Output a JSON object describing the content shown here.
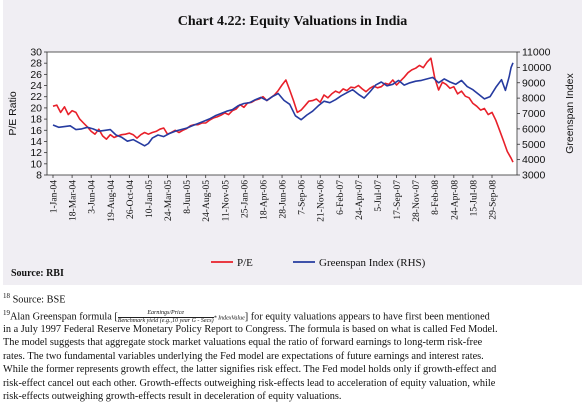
{
  "chart_data": {
    "type": "line",
    "title": "Chart 4.22: Equity Valuations in India",
    "ylabel": "P/E Ratio",
    "y2label": "Greenspan Index",
    "ylim": [
      8,
      30
    ],
    "y2lim": [
      3000,
      11000
    ],
    "yticks": [
      8,
      10,
      12,
      14,
      16,
      18,
      20,
      22,
      24,
      26,
      28,
      30
    ],
    "y2ticks": [
      3000,
      4000,
      5000,
      6000,
      7000,
      8000,
      9000,
      10000,
      11000
    ],
    "x_tick_labels": [
      "1-Jan-04",
      "18-Mar-04",
      "3-Jun-04",
      "19-Aug-04",
      "26-Oct-04",
      "10-Jan-05",
      "24-Mar-05",
      "8-Jun-05",
      "24-Aug-05",
      "11-Nov-05",
      "25-Jan-06",
      "18-Apr-06",
      "28-Jun-06",
      "7-Sep-06",
      "21-Nov-06",
      "6-Feb-07",
      "24-Apr-07",
      "5-Jul-07",
      "17-Sep-07",
      "28-Nov-07",
      "8-Feb-08",
      "24-Apr-08",
      "15-Jul-08",
      "29-Sep-08"
    ],
    "legend_position": "bottom",
    "series": [
      {
        "name": "P/E",
        "color": "#e8202a",
        "axis": "left",
        "points": [
          [
            0,
            20.3
          ],
          [
            0.2,
            20.5
          ],
          [
            0.4,
            19.2
          ],
          [
            0.6,
            20.2
          ],
          [
            0.8,
            18.8
          ],
          [
            1.0,
            19.5
          ],
          [
            1.2,
            19.2
          ],
          [
            1.4,
            18.0
          ],
          [
            1.6,
            17.3
          ],
          [
            1.8,
            16.6
          ],
          [
            2.0,
            15.8
          ],
          [
            2.2,
            15.3
          ],
          [
            2.4,
            16.2
          ],
          [
            2.6,
            15.0
          ],
          [
            2.8,
            14.4
          ],
          [
            3.0,
            15.2
          ],
          [
            3.2,
            14.7
          ],
          [
            3.4,
            15.0
          ],
          [
            3.6,
            15.2
          ],
          [
            3.8,
            15.3
          ],
          [
            4.0,
            15.5
          ],
          [
            4.2,
            15.2
          ],
          [
            4.4,
            14.6
          ],
          [
            4.6,
            15.2
          ],
          [
            4.8,
            15.6
          ],
          [
            5.0,
            15.3
          ],
          [
            5.2,
            15.6
          ],
          [
            5.4,
            15.8
          ],
          [
            5.6,
            16.2
          ],
          [
            5.8,
            16.4
          ],
          [
            6.0,
            15.3
          ],
          [
            6.2,
            15.6
          ],
          [
            6.4,
            16.0
          ],
          [
            6.6,
            15.6
          ],
          [
            6.8,
            16.0
          ],
          [
            7.0,
            16.3
          ],
          [
            7.2,
            16.8
          ],
          [
            7.4,
            17.0
          ],
          [
            7.6,
            17.0
          ],
          [
            7.8,
            17.3
          ],
          [
            8.0,
            17.3
          ],
          [
            8.2,
            17.8
          ],
          [
            8.4,
            18.2
          ],
          [
            8.6,
            18.4
          ],
          [
            8.8,
            18.7
          ],
          [
            9.0,
            19.1
          ],
          [
            9.2,
            18.8
          ],
          [
            9.4,
            19.5
          ],
          [
            9.6,
            19.8
          ],
          [
            9.8,
            20.6
          ],
          [
            10.0,
            20.1
          ],
          [
            10.2,
            20.9
          ],
          [
            10.4,
            21.0
          ],
          [
            10.6,
            21.4
          ],
          [
            10.8,
            21.6
          ],
          [
            11.0,
            22.0
          ],
          [
            11.2,
            21.3
          ],
          [
            11.4,
            21.8
          ],
          [
            11.6,
            22.3
          ],
          [
            11.8,
            23.1
          ],
          [
            12.0,
            24.1
          ],
          [
            12.2,
            25.0
          ],
          [
            12.4,
            23.2
          ],
          [
            12.6,
            21.3
          ],
          [
            12.8,
            19.2
          ],
          [
            13.0,
            19.6
          ],
          [
            13.2,
            20.4
          ],
          [
            13.4,
            21.2
          ],
          [
            13.6,
            21.3
          ],
          [
            13.8,
            21.6
          ],
          [
            14.0,
            21.0
          ],
          [
            14.2,
            22.3
          ],
          [
            14.4,
            21.8
          ],
          [
            14.6,
            22.5
          ],
          [
            14.8,
            23.0
          ],
          [
            15.0,
            22.7
          ],
          [
            15.2,
            23.4
          ],
          [
            15.4,
            23.1
          ],
          [
            15.6,
            23.7
          ],
          [
            15.8,
            23.6
          ],
          [
            16.0,
            24.0
          ],
          [
            16.2,
            23.4
          ],
          [
            16.4,
            22.9
          ],
          [
            16.6,
            23.5
          ],
          [
            16.8,
            23.9
          ],
          [
            17.0,
            23.6
          ],
          [
            17.2,
            23.8
          ],
          [
            17.4,
            24.4
          ],
          [
            17.6,
            24.2
          ],
          [
            17.8,
            25.0
          ],
          [
            18.0,
            24.1
          ],
          [
            18.2,
            24.8
          ],
          [
            18.4,
            25.5
          ],
          [
            18.6,
            26.3
          ],
          [
            18.8,
            26.8
          ],
          [
            19.0,
            27.1
          ],
          [
            19.2,
            27.6
          ],
          [
            19.4,
            27.2
          ],
          [
            19.6,
            28.2
          ],
          [
            19.8,
            28.9
          ],
          [
            20.0,
            25.4
          ],
          [
            20.2,
            23.2
          ],
          [
            20.4,
            24.6
          ],
          [
            20.6,
            24.2
          ],
          [
            20.8,
            23.5
          ],
          [
            21.0,
            23.8
          ],
          [
            21.2,
            22.5
          ],
          [
            21.4,
            23.0
          ],
          [
            21.6,
            22.1
          ],
          [
            21.8,
            21.8
          ],
          [
            22.0,
            20.8
          ],
          [
            22.2,
            20.3
          ],
          [
            22.4,
            19.6
          ],
          [
            22.6,
            19.9
          ],
          [
            22.8,
            18.8
          ],
          [
            23.0,
            19.2
          ],
          [
            23.2,
            17.8
          ],
          [
            23.4,
            16.0
          ],
          [
            23.6,
            14.1
          ],
          [
            23.8,
            12.2
          ],
          [
            24.0,
            11.0
          ],
          [
            24.1,
            10.3
          ]
        ]
      },
      {
        "name": "Greenspan Index (RHS)",
        "color": "#263ba0",
        "axis": "right",
        "points": [
          [
            0,
            6250
          ],
          [
            0.3,
            6100
          ],
          [
            0.6,
            6150
          ],
          [
            0.9,
            6200
          ],
          [
            1.2,
            5950
          ],
          [
            1.5,
            6000
          ],
          [
            1.8,
            6100
          ],
          [
            2.1,
            6000
          ],
          [
            2.4,
            5850
          ],
          [
            2.7,
            5900
          ],
          [
            3.0,
            5950
          ],
          [
            3.3,
            5600
          ],
          [
            3.6,
            5450
          ],
          [
            3.9,
            5200
          ],
          [
            4.2,
            5300
          ],
          [
            4.5,
            5100
          ],
          [
            4.8,
            4900
          ],
          [
            5.0,
            5050
          ],
          [
            5.2,
            5400
          ],
          [
            5.5,
            5600
          ],
          [
            5.8,
            5500
          ],
          [
            6.1,
            5700
          ],
          [
            6.4,
            5850
          ],
          [
            6.7,
            5950
          ],
          [
            7.0,
            6050
          ],
          [
            7.3,
            6200
          ],
          [
            7.6,
            6350
          ],
          [
            7.9,
            6500
          ],
          [
            8.2,
            6650
          ],
          [
            8.5,
            6850
          ],
          [
            8.8,
            7000
          ],
          [
            9.1,
            7150
          ],
          [
            9.4,
            7250
          ],
          [
            9.7,
            7500
          ],
          [
            10.0,
            7650
          ],
          [
            10.3,
            7700
          ],
          [
            10.6,
            7900
          ],
          [
            10.9,
            8050
          ],
          [
            11.2,
            7850
          ],
          [
            11.5,
            8100
          ],
          [
            11.8,
            8300
          ],
          [
            12.1,
            7850
          ],
          [
            12.4,
            7600
          ],
          [
            12.7,
            6850
          ],
          [
            13.0,
            6600
          ],
          [
            13.3,
            6900
          ],
          [
            13.6,
            7150
          ],
          [
            13.9,
            7500
          ],
          [
            14.2,
            7800
          ],
          [
            14.5,
            7700
          ],
          [
            14.8,
            7900
          ],
          [
            15.1,
            8150
          ],
          [
            15.4,
            8350
          ],
          [
            15.7,
            8550
          ],
          [
            16.0,
            8250
          ],
          [
            16.3,
            8000
          ],
          [
            16.6,
            8400
          ],
          [
            16.9,
            8850
          ],
          [
            17.2,
            9050
          ],
          [
            17.5,
            8800
          ],
          [
            17.8,
            8900
          ],
          [
            18.1,
            9150
          ],
          [
            18.4,
            8850
          ],
          [
            18.7,
            9000
          ],
          [
            19.0,
            9100
          ],
          [
            19.3,
            9150
          ],
          [
            19.6,
            9250
          ],
          [
            19.9,
            9350
          ],
          [
            20.2,
            9000
          ],
          [
            20.5,
            9250
          ],
          [
            20.8,
            9050
          ],
          [
            21.1,
            8900
          ],
          [
            21.4,
            9150
          ],
          [
            21.7,
            8750
          ],
          [
            22.0,
            8550
          ],
          [
            22.3,
            8250
          ],
          [
            22.6,
            7950
          ],
          [
            22.9,
            8100
          ],
          [
            23.2,
            8700
          ],
          [
            23.5,
            9200
          ],
          [
            23.7,
            8500
          ],
          [
            23.9,
            9400
          ],
          [
            24.0,
            10000
          ],
          [
            24.1,
            10300
          ]
        ]
      }
    ]
  },
  "source_rbi": "Source: RBI",
  "footnotes": {
    "fn1_num": "18",
    "fn1_text": " Source: BSE",
    "fn2_num": "19",
    "fn2_pre": "Alan Greenspan formula [",
    "fn2_frac_num": "Earnings/Price",
    "fn2_frac_den": "Benchmark yield (e.g.,10 year G - Secs)",
    "fn2_frac_post": "* IndexValue",
    "fn2_post": "] for equity valuations appears to have first been mentioned",
    "lines": [
      "in a July 1997 Federal Reserve Monetary Policy Report to Congress. The formula is based on what is called Fed Model.",
      "The model suggests that aggregate stock market valuations equal the ratio of forward earnings to long-term risk-free",
      "rates. The two fundamental variables underlying the Fed model are expectations of future earnings and interest rates.",
      "While the former represents growth effect, the latter signifies risk effect. The Fed model holds only if growth-effect and",
      "risk-effect cancel out each other. Growth-effects outweighing risk-effects lead to acceleration of equity valuation, while",
      "risk-effects outweighing growth-effects result in deceleration of equity valuations."
    ]
  }
}
